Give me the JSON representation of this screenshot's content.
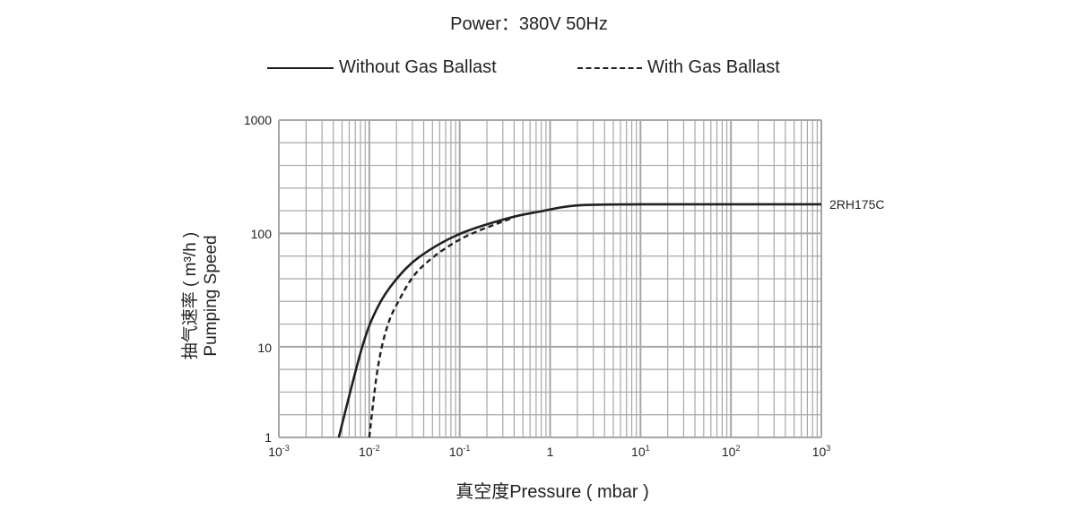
{
  "title": "Power：380V 50Hz",
  "chart_data": {
    "type": "line",
    "title": "Power：380V 50Hz",
    "xlabel": "真空度Pressure ( mbar )",
    "ylabel_cn": "抽气速率 ( m³/h )",
    "ylabel_en": "Pumping Speed",
    "x_scale": "log",
    "y_scale": "log",
    "xlim": [
      0.001,
      1000
    ],
    "ylim": [
      1,
      1000
    ],
    "grid": true,
    "legend_placement": "top",
    "x_ticks": [
      {
        "base": "10",
        "exp": "-3"
      },
      {
        "base": "10",
        "exp": "-2"
      },
      {
        "base": "10",
        "exp": "-1"
      },
      {
        "base": "1",
        "exp": ""
      },
      {
        "base": "10",
        "exp": "1"
      },
      {
        "base": "10",
        "exp": "2"
      },
      {
        "base": "10",
        "exp": "3"
      }
    ],
    "y_ticks": [
      "1000",
      "100",
      "10",
      "1"
    ],
    "series": [
      {
        "name": "Without Gas Ballast",
        "style": "solid",
        "color": "#231f20",
        "x": [
          0.0046,
          0.0083,
          0.0123,
          0.0194,
          0.036,
          0.1,
          0.35,
          0.76,
          2,
          10,
          100,
          1000
        ],
        "y": [
          1,
          10,
          22.5,
          39,
          63,
          100,
          138,
          157,
          178,
          182,
          182,
          182
        ]
      },
      {
        "name": "With Gas Ballast",
        "style": "dashed",
        "color": "#231f20",
        "x": [
          0.01,
          0.0123,
          0.0155,
          0.0207,
          0.036,
          0.102,
          0.4
        ],
        "y": [
          1,
          5.6,
          14.6,
          25,
          49,
          90,
          140
        ]
      }
    ],
    "annotations": [
      "2RH175C"
    ],
    "grid_color": "#a7a7a7"
  }
}
